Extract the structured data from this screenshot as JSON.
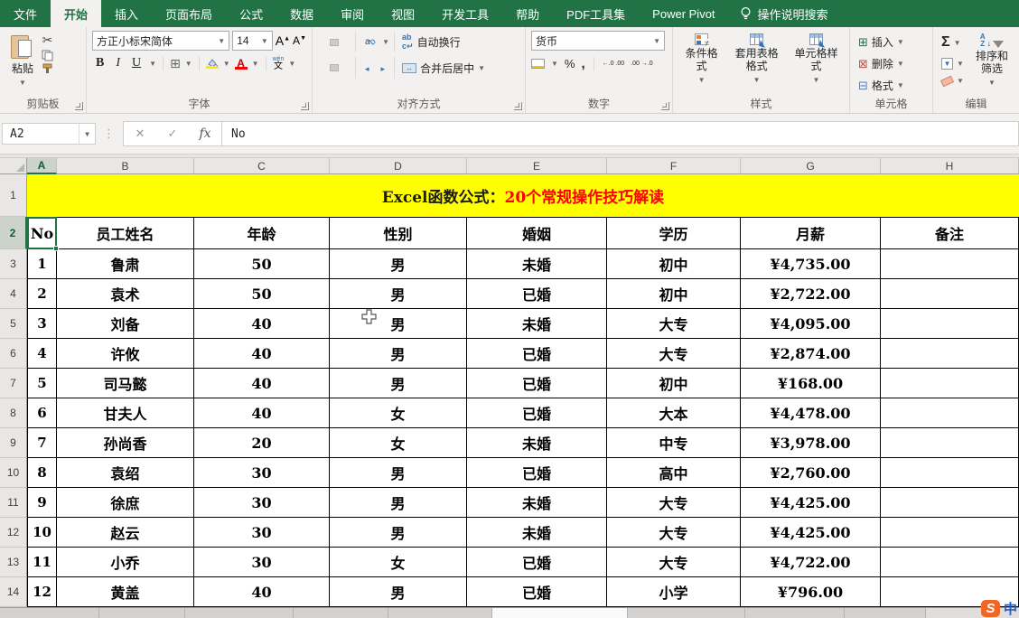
{
  "tab_bar": {
    "tabs": [
      {
        "label": "文件",
        "active": false
      },
      {
        "label": "开始",
        "active": true
      },
      {
        "label": "插入",
        "active": false
      },
      {
        "label": "页面布局",
        "active": false
      },
      {
        "label": "公式",
        "active": false
      },
      {
        "label": "数据",
        "active": false
      },
      {
        "label": "审阅",
        "active": false
      },
      {
        "label": "视图",
        "active": false
      },
      {
        "label": "开发工具",
        "active": false
      },
      {
        "label": "帮助",
        "active": false
      },
      {
        "label": "PDF工具集",
        "active": false
      },
      {
        "label": "Power Pivot",
        "active": false
      }
    ],
    "search_label": "操作说明搜索"
  },
  "ribbon": {
    "clipboard": {
      "group_label": "剪贴板",
      "paste_label": "粘贴"
    },
    "font": {
      "group_label": "字体",
      "font_name": "方正小标宋简体",
      "font_size": "14",
      "bold": "B",
      "italic": "I",
      "underline": "U",
      "phonetic_top": "wén",
      "phonetic_bottom": "文"
    },
    "alignment": {
      "group_label": "对齐方式",
      "wrap_label": "自动换行",
      "merge_label": "合并后居中"
    },
    "number": {
      "group_label": "数字",
      "format_value": "货币",
      "percent": "%",
      "comma": ",",
      "dec_inc": "←.0 .00",
      "dec_dec": ".00 →.0"
    },
    "styles": {
      "group_label": "样式",
      "conditional_label": "条件格式",
      "format_table_label": "套用表格格式",
      "cell_styles_label": "单元格样式"
    },
    "cells": {
      "group_label": "单元格",
      "insert_label": "插入",
      "delete_label": "删除",
      "format_label": "格式"
    },
    "editing": {
      "group_label": "编辑",
      "sum_symbol": "Σ",
      "sort_filter_label": "排序和筛选"
    }
  },
  "formula_bar": {
    "name_box": "A2",
    "fx_label": "fx",
    "content": "No"
  },
  "sheet": {
    "col_letters": [
      "A",
      "B",
      "C",
      "D",
      "E",
      "F",
      "G",
      "H"
    ],
    "selected_col": "A",
    "selected_row_number": "2",
    "banner": {
      "black_text": "Excel函数公式：",
      "red_text": "20个常规操作技巧解读",
      "bg_color": "#FFFF00",
      "red_color": "#FF0000",
      "black_color": "#1a1a1a"
    },
    "header_row": [
      "No",
      "员工姓名",
      "年龄",
      "性别",
      "婚姻",
      "学历",
      "月薪",
      "备注"
    ],
    "rows": [
      [
        "1",
        "鲁肃",
        "50",
        "男",
        "未婚",
        "初中",
        "¥4,735.00",
        ""
      ],
      [
        "2",
        "袁术",
        "50",
        "男",
        "已婚",
        "初中",
        "¥2,722.00",
        ""
      ],
      [
        "3",
        "刘备",
        "40",
        "男",
        "未婚",
        "大专",
        "¥4,095.00",
        ""
      ],
      [
        "4",
        "许攸",
        "40",
        "男",
        "已婚",
        "大专",
        "¥2,874.00",
        ""
      ],
      [
        "5",
        "司马懿",
        "40",
        "男",
        "已婚",
        "初中",
        "¥168.00",
        ""
      ],
      [
        "6",
        "甘夫人",
        "40",
        "女",
        "已婚",
        "大本",
        "¥4,478.00",
        ""
      ],
      [
        "7",
        "孙尚香",
        "20",
        "女",
        "未婚",
        "中专",
        "¥3,978.00",
        ""
      ],
      [
        "8",
        "袁绍",
        "30",
        "男",
        "已婚",
        "高中",
        "¥2,760.00",
        ""
      ],
      [
        "9",
        "徐庶",
        "30",
        "男",
        "未婚",
        "大专",
        "¥4,425.00",
        ""
      ],
      [
        "10",
        "赵云",
        "30",
        "男",
        "未婚",
        "大专",
        "¥4,425.00",
        ""
      ],
      [
        "11",
        "小乔",
        "30",
        "女",
        "已婚",
        "大专",
        "¥4,722.00",
        ""
      ],
      [
        "12",
        "黄盖",
        "40",
        "男",
        "已婚",
        "小学",
        "¥796.00",
        ""
      ]
    ]
  },
  "ime": {
    "s_label": "S",
    "mode_label": "中",
    "accent_color": "#f26522",
    "mode_color": "#1f5cc4"
  },
  "colors": {
    "excel_green": "#217346",
    "ribbon_bg": "#f3f1ef",
    "selection_green": "#217346"
  }
}
